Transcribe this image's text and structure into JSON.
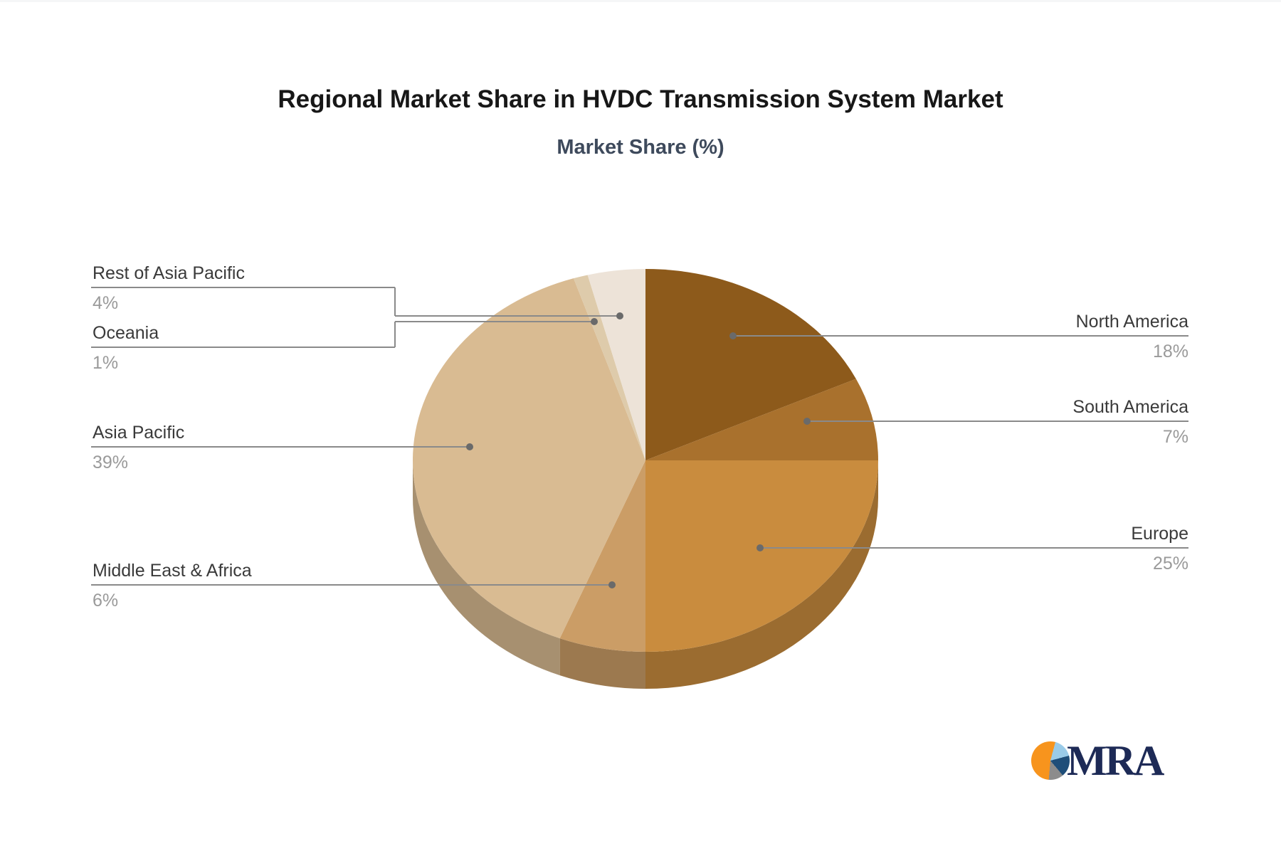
{
  "chart_data": {
    "type": "pie",
    "title": "Regional Market Share in HVDC Transmission System Market",
    "subtitle": "Market Share (%)",
    "unit": "%",
    "style": "3d",
    "clockwise_from_top": true,
    "legend_position": "callout-labels",
    "slices": [
      {
        "label": "North America",
        "value": 18,
        "display": "18%",
        "color": "#8D5A1B"
      },
      {
        "label": "South America",
        "value": 7,
        "display": "7%",
        "color": "#A9712D"
      },
      {
        "label": "Europe",
        "value": 25,
        "display": "25%",
        "color": "#C98C3E"
      },
      {
        "label": "Middle East & Africa",
        "value": 6,
        "display": "6%",
        "color": "#CB9D66"
      },
      {
        "label": "Asia Pacific",
        "value": 39,
        "display": "39%",
        "color": "#D9BB92"
      },
      {
        "label": "Oceania",
        "value": 1,
        "display": "1%",
        "color": "#DECBAB"
      },
      {
        "label": "Rest of Asia Pacific",
        "value": 4,
        "display": "4%",
        "color": "#EDE3D8"
      }
    ],
    "callout_line_color": "#8a8a8a",
    "callout_dot_color": "#6a6a6a",
    "label_color": "#3a3a3a",
    "percent_color": "#9a9a9a"
  },
  "logo": {
    "text": "MRA",
    "text_color": "#1D2A56",
    "icon_colors": {
      "light_blue": "#9ACBE8",
      "navy": "#1F4E79",
      "gray": "#8C8C8C",
      "orange": "#F7941D"
    }
  }
}
